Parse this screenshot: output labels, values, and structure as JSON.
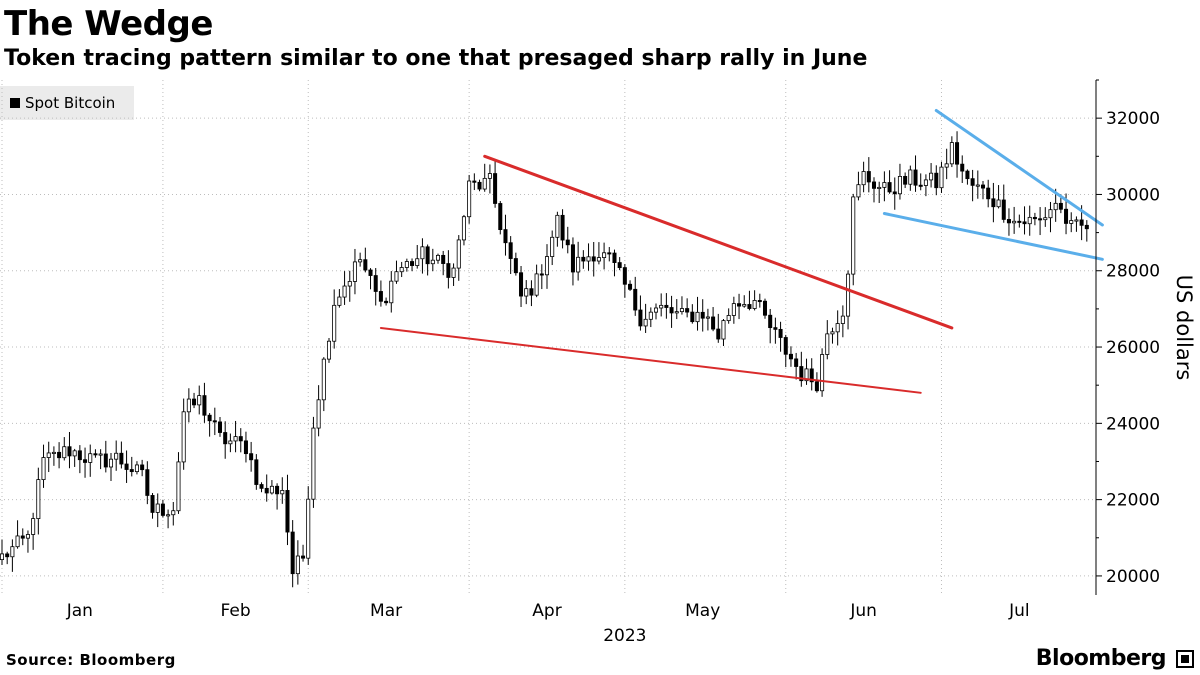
{
  "title": "The Wedge",
  "subtitle": "Token tracing pattern similar to one that presaged sharp rally in June",
  "source": "Source: Bloomberg",
  "brand": "Bloomberg",
  "chart_data": {
    "type": "candlestick",
    "legend": [
      "Spot Bitcoin"
    ],
    "legend_position": "top-left",
    "ylabel": "US dollars",
    "ylim": [
      19500,
      33000
    ],
    "yticks": [
      20000,
      22000,
      24000,
      26000,
      28000,
      30000,
      32000
    ],
    "xlabel": "2023",
    "x_range_days": [
      0,
      210
    ],
    "month_labels": [
      {
        "label": "Jan",
        "day": 15
      },
      {
        "label": "Feb",
        "day": 45
      },
      {
        "label": "Mar",
        "day": 74
      },
      {
        "label": "Apr",
        "day": 105
      },
      {
        "label": "May",
        "day": 135
      },
      {
        "label": "Jun",
        "day": 166
      },
      {
        "label": "Jul",
        "day": 196
      }
    ],
    "gridlines_x_days": [
      0,
      31,
      59,
      90,
      120,
      151,
      181,
      212
    ],
    "anchors": [
      {
        "day": 0,
        "close": 20500
      },
      {
        "day": 5,
        "close": 21000
      },
      {
        "day": 8,
        "close": 23000
      },
      {
        "day": 13,
        "close": 23300
      },
      {
        "day": 18,
        "close": 23000
      },
      {
        "day": 22,
        "close": 23100
      },
      {
        "day": 27,
        "close": 22600
      },
      {
        "day": 29,
        "close": 21700
      },
      {
        "day": 33,
        "close": 21800
      },
      {
        "day": 35,
        "close": 24300
      },
      {
        "day": 38,
        "close": 24600
      },
      {
        "day": 42,
        "close": 23600
      },
      {
        "day": 47,
        "close": 23400
      },
      {
        "day": 50,
        "close": 22200
      },
      {
        "day": 54,
        "close": 22300
      },
      {
        "day": 56,
        "close": 20100
      },
      {
        "day": 58,
        "close": 20500
      },
      {
        "day": 60,
        "close": 24000
      },
      {
        "day": 64,
        "close": 27200
      },
      {
        "day": 69,
        "close": 28300
      },
      {
        "day": 73,
        "close": 27100
      },
      {
        "day": 76,
        "close": 28000
      },
      {
        "day": 81,
        "close": 28400
      },
      {
        "day": 87,
        "close": 28000
      },
      {
        "day": 90,
        "close": 30200
      },
      {
        "day": 94,
        "close": 30300
      },
      {
        "day": 97,
        "close": 28700
      },
      {
        "day": 100,
        "close": 27300
      },
      {
        "day": 103,
        "close": 27700
      },
      {
        "day": 107,
        "close": 29300
      },
      {
        "day": 110,
        "close": 28100
      },
      {
        "day": 114,
        "close": 28500
      },
      {
        "day": 117,
        "close": 28300
      },
      {
        "day": 120,
        "close": 27600
      },
      {
        "day": 123,
        "close": 26800
      },
      {
        "day": 127,
        "close": 27000
      },
      {
        "day": 131,
        "close": 26800
      },
      {
        "day": 135,
        "close": 26900
      },
      {
        "day": 138,
        "close": 26300
      },
      {
        "day": 141,
        "close": 27200
      },
      {
        "day": 145,
        "close": 27200
      },
      {
        "day": 148,
        "close": 26500
      },
      {
        "day": 151,
        "close": 25900
      },
      {
        "day": 154,
        "close": 25300
      },
      {
        "day": 157,
        "close": 25100
      },
      {
        "day": 159,
        "close": 26400
      },
      {
        "day": 162,
        "close": 27000
      },
      {
        "day": 163,
        "close": 28100
      },
      {
        "day": 164,
        "close": 29800
      },
      {
        "day": 166,
        "close": 30500
      },
      {
        "day": 170,
        "close": 30100
      },
      {
        "day": 175,
        "close": 30400
      },
      {
        "day": 180,
        "close": 30300
      },
      {
        "day": 183,
        "close": 31200
      },
      {
        "day": 186,
        "close": 30300
      },
      {
        "day": 190,
        "close": 30000
      },
      {
        "day": 195,
        "close": 29300
      },
      {
        "day": 200,
        "close": 29300
      },
      {
        "day": 203,
        "close": 29800
      },
      {
        "day": 206,
        "close": 29100
      },
      {
        "day": 209,
        "close": 29150
      }
    ],
    "trendlines": [
      {
        "name": "june-wedge-upper",
        "color": "#d92b2b",
        "width": 3,
        "points": [
          [
            93,
            31000
          ],
          [
            183,
            26500
          ]
        ]
      },
      {
        "name": "june-wedge-lower",
        "color": "#d92b2b",
        "width": 2,
        "points": [
          [
            73,
            26500
          ],
          [
            177,
            24800
          ]
        ]
      },
      {
        "name": "july-wedge-upper",
        "color": "#5aaeea",
        "width": 3,
        "points": [
          [
            180,
            32200
          ],
          [
            212,
            29200
          ]
        ]
      },
      {
        "name": "july-wedge-lower",
        "color": "#5aaeea",
        "width": 3,
        "points": [
          [
            170,
            29500
          ],
          [
            212,
            28300
          ]
        ]
      }
    ],
    "colors": {
      "bearish": "#000000",
      "bullish": "#ffffff",
      "grid": "#bdbdbd",
      "axis": "#000000"
    }
  }
}
